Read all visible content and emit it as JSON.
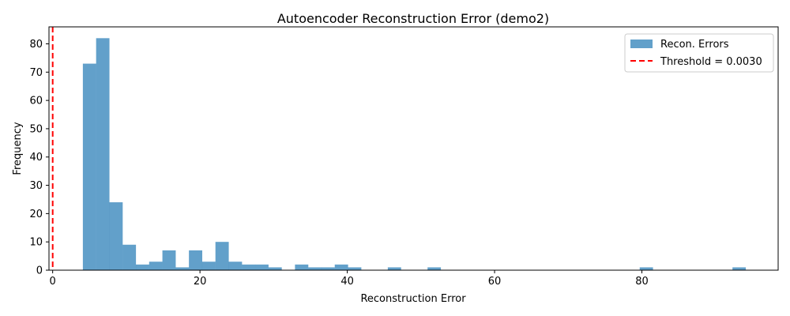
{
  "chart_data": {
    "type": "bar",
    "title": "Autoencoder Reconstruction Error (demo2)",
    "xlabel": "Reconstruction Error",
    "ylabel": "Frequency",
    "xlim": [
      -0.5,
      98.5
    ],
    "ylim": [
      0,
      86
    ],
    "xticks": [
      0,
      20,
      40,
      60,
      80
    ],
    "yticks": [
      0,
      10,
      20,
      30,
      40,
      50,
      60,
      70,
      80
    ],
    "grid": false,
    "legend_position": "top-right",
    "bin_width": 1.81,
    "series": [
      {
        "name": "Recon. Errors",
        "color": "#1f77b4",
        "opacity": 0.7,
        "bin_starts": [
          4.1,
          5.9,
          7.7,
          9.5,
          11.3,
          13.1,
          14.9,
          16.7,
          18.5,
          20.3,
          22.1,
          23.9,
          25.7,
          27.5,
          29.3,
          31.1,
          32.9,
          34.7,
          36.5,
          38.3,
          40.1,
          41.9,
          43.7,
          45.5,
          47.3,
          49.1,
          50.9,
          52.7,
          54.5,
          56.3,
          58.1,
          59.9,
          61.7,
          63.5,
          65.3,
          67.1,
          68.9,
          70.7,
          72.5,
          74.3,
          76.1,
          77.9,
          79.7,
          81.5,
          83.3,
          85.1,
          86.9,
          88.7,
          90.5,
          92.3
        ],
        "values": [
          73,
          82,
          24,
          9,
          2,
          3,
          7,
          1,
          7,
          3,
          10,
          3,
          2,
          2,
          1,
          0,
          2,
          1,
          1,
          2,
          1,
          0,
          0,
          1,
          0,
          0,
          1,
          0,
          0,
          0,
          0,
          0,
          0,
          0,
          0,
          0,
          0,
          0,
          0,
          0,
          0,
          0,
          1,
          0,
          0,
          0,
          0,
          0,
          0,
          1
        ]
      }
    ],
    "threshold": {
      "name": "Threshold = 0.0030",
      "value": 0.003,
      "color": "#ff0000"
    }
  }
}
